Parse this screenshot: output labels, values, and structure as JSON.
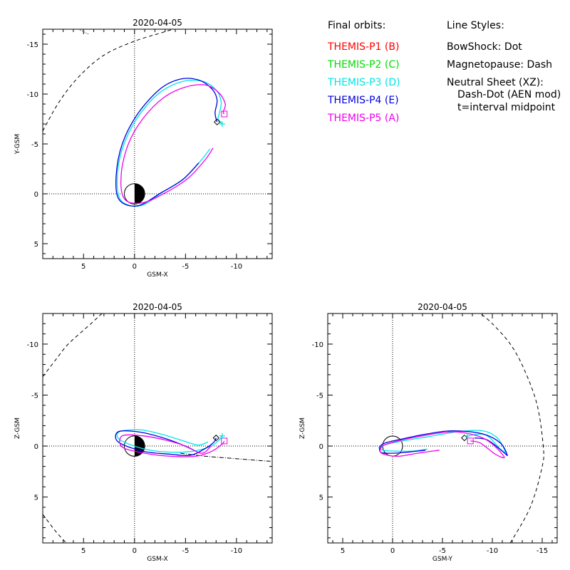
{
  "legend": {
    "title": "Final orbits:",
    "items": [
      {
        "label": "THEMIS-P1 (B)",
        "color": "#ff0000"
      },
      {
        "label": "THEMIS-P2 (C)",
        "color": "#00dd00"
      },
      {
        "label": "THEMIS-P3 (D)",
        "color": "#00e5e5"
      },
      {
        "label": "THEMIS-P4 (E)",
        "color": "#0000dd"
      },
      {
        "label": "THEMIS-P5 (A)",
        "color": "#ee00ee"
      }
    ]
  },
  "line_styles": {
    "title": "Line Styles:",
    "lines": [
      "BowShock: Dot",
      "Magnetopause: Dash",
      "Neutral Sheet (XZ):",
      "Dash-Dot (AEN mod)",
      "t=interval midpoint"
    ]
  },
  "chart_data": [
    {
      "type": "line",
      "panel": "xy",
      "title": "2020-04-05",
      "xlabel": "GSM-X",
      "ylabel": "Y-GSM",
      "xlim": [
        9,
        -13.5
      ],
      "ylim": [
        6.5,
        -16.5
      ],
      "xticks": [
        5,
        0,
        -5,
        -10
      ],
      "xtick_labels": [
        "5",
        "0",
        "-5",
        "-10"
      ],
      "yticks": [
        -15,
        -10,
        -5,
        0,
        5
      ],
      "ytick_labels": [
        "-15",
        "-10",
        "-5",
        "0",
        "5"
      ],
      "bowshock": [
        [
          6.8,
          -16.5
        ],
        [
          5.5,
          -16.5
        ],
        [
          4.5,
          -16
        ]
      ],
      "magnetopause": [
        [
          9,
          -6.3
        ],
        [
          7.4,
          -9.2
        ],
        [
          5.5,
          -11.7
        ],
        [
          3,
          -13.9
        ],
        [
          0,
          -15.3
        ],
        [
          -2.5,
          -16.1
        ],
        [
          -3.8,
          -16.5
        ]
      ],
      "series": [
        {
          "name": "THEMIS-P3 (D)",
          "color": "#00e5e5",
          "points": [
            [
              -7.4,
              -4.5
            ],
            [
              -6.4,
              -3.2
            ],
            [
              -4.8,
              -1.5
            ],
            [
              -2.8,
              -0.2
            ],
            [
              -0.6,
              1.2
            ],
            [
              1.3,
              0.7
            ],
            [
              1.7,
              -1.5
            ],
            [
              1.2,
              -4.5
            ],
            [
              -0.2,
              -7.5
            ],
            [
              -2.3,
              -10
            ],
            [
              -4.5,
              -11.2
            ],
            [
              -6.6,
              -11.3
            ],
            [
              -8,
              -10.4
            ],
            [
              -8.5,
              -9.2
            ],
            [
              -8.3,
              -8
            ],
            [
              -8.2,
              -7.5
            ],
            [
              -8.6,
              -7.0
            ]
          ]
        },
        {
          "name": "THEMIS-P4 (E)",
          "color": "#0000dd",
          "points": [
            [
              -6.3,
              -3.1
            ],
            [
              -4.7,
              -1.4
            ],
            [
              -2.6,
              -0.1
            ],
            [
              -0.3,
              1.2
            ],
            [
              1.5,
              0.6
            ],
            [
              1.8,
              -1.8
            ],
            [
              1.2,
              -5
            ],
            [
              -0.3,
              -8
            ],
            [
              -2.5,
              -10.5
            ],
            [
              -4.5,
              -11.5
            ],
            [
              -6.3,
              -11.4
            ],
            [
              -7.6,
              -10.5
            ],
            [
              -8.1,
              -9.4
            ],
            [
              -7.9,
              -8.2
            ],
            [
              -8,
              -7.5
            ],
            [
              -8.1,
              -7.2
            ]
          ]
        },
        {
          "name": "THEMIS-P5 (A)",
          "color": "#ee00ee",
          "points": [
            [
              -7.7,
              -4.6
            ],
            [
              -7,
              -3.5
            ],
            [
              -5.3,
              -1.6
            ],
            [
              -3.2,
              -0.2
            ],
            [
              -0.8,
              0.9
            ],
            [
              1,
              0.5
            ],
            [
              1.3,
              -2
            ],
            [
              0.6,
              -5
            ],
            [
              -0.8,
              -7.5
            ],
            [
              -2.8,
              -9.6
            ],
            [
              -5,
              -10.7
            ],
            [
              -7,
              -10.9
            ],
            [
              -8.3,
              -10.1
            ],
            [
              -8.9,
              -9.0
            ],
            [
              -8.7,
              -8.2
            ],
            [
              -8.8,
              -8.0
            ]
          ]
        }
      ],
      "markers": [
        {
          "type": "diamond",
          "color": "#000000",
          "x": -8.1,
          "y": -7.2
        },
        {
          "type": "square",
          "color": "#ee00ee",
          "x": -8.8,
          "y": -8.0
        },
        {
          "type": "plus",
          "color": "#00e5e5",
          "x": -8.6,
          "y": -7.0
        }
      ]
    },
    {
      "type": "line",
      "panel": "xz",
      "title": "2020-04-05",
      "xlabel": "GSM-X",
      "ylabel": "Z-GSM",
      "xlim": [
        9,
        -13.5
      ],
      "ylim": [
        9.5,
        -13
      ],
      "xticks": [
        5,
        0,
        -5,
        -10
      ],
      "xtick_labels": [
        "5",
        "0",
        "-5",
        "-10"
      ],
      "yticks": [
        5,
        0,
        -5,
        -10
      ],
      "ytick_labels": [
        "5",
        "0",
        "-5",
        "-10"
      ],
      "magnetopause_upper": [
        [
          9,
          6.7
        ],
        [
          7.7,
          8.4
        ],
        [
          6.7,
          9.5
        ]
      ],
      "magnetopause_lower": [
        [
          9,
          -6.8
        ],
        [
          7.7,
          -8.5
        ],
        [
          6.5,
          -10
        ],
        [
          4.5,
          -11.8
        ],
        [
          3.2,
          -13
        ]
      ],
      "neutral_sheet": [
        [
          -4.5,
          0.7
        ],
        [
          -7,
          1.0
        ],
        [
          -9.5,
          1.2
        ],
        [
          -12,
          1.4
        ],
        [
          -13.5,
          1.5
        ]
      ],
      "series": [
        {
          "name": "THEMIS-P3 (D)",
          "color": "#00e5e5",
          "points": [
            [
              -7.2,
              -0.4
            ],
            [
              -6.2,
              -0.1
            ],
            [
              -4.5,
              -0.6
            ],
            [
              -2.5,
              -1.2
            ],
            [
              -0.5,
              -1.6
            ],
            [
              1.5,
              -1.4
            ],
            [
              1.4,
              -0.6
            ],
            [
              -1,
              0.3
            ],
            [
              -3.5,
              0.6
            ],
            [
              -5.8,
              0.5
            ],
            [
              -7.5,
              0
            ],
            [
              -8.3,
              -0.6
            ],
            [
              -8.6,
              -1.0
            ]
          ]
        },
        {
          "name": "THEMIS-P4 (E)",
          "color": "#0000dd",
          "points": [
            [
              -6,
              0.5
            ],
            [
              -4.5,
              -0.2
            ],
            [
              -2.5,
              -0.9
            ],
            [
              -0.3,
              -1.4
            ],
            [
              1.6,
              -1.4
            ],
            [
              1.6,
              -0.4
            ],
            [
              -0.8,
              0.5
            ],
            [
              -3.5,
              0.8
            ],
            [
              -5.5,
              0.9
            ],
            [
              -7,
              0.2
            ],
            [
              -7.8,
              -0.4
            ],
            [
              -8.0,
              -0.8
            ]
          ]
        },
        {
          "name": "THEMIS-P5 (A)",
          "color": "#ee00ee",
          "points": [
            [
              -7.5,
              0.0
            ],
            [
              -6.6,
              0.7
            ],
            [
              -5,
              0.0
            ],
            [
              -3,
              -0.6
            ],
            [
              -0.8,
              -1.0
            ],
            [
              1.2,
              -1.0
            ],
            [
              1.2,
              0.1
            ],
            [
              -1,
              0.7
            ],
            [
              -3.5,
              1.0
            ],
            [
              -6,
              1.0
            ],
            [
              -7.6,
              0.5
            ],
            [
              -8.6,
              -0.2
            ],
            [
              -8.8,
              -0.5
            ]
          ]
        }
      ],
      "markers": [
        {
          "type": "diamond",
          "color": "#000000",
          "x": -8.0,
          "y": -0.8
        },
        {
          "type": "square",
          "color": "#ee00ee",
          "x": -8.8,
          "y": -0.5
        },
        {
          "type": "plus",
          "color": "#00e5e5",
          "x": -8.6,
          "y": -1.0
        }
      ]
    },
    {
      "type": "line",
      "panel": "yz",
      "title": "2020-04-05",
      "xlabel": "GSM-Y",
      "ylabel": "Z-GSM",
      "xlim": [
        6.5,
        -16.5
      ],
      "ylim": [
        9.5,
        -13
      ],
      "xticks": [
        5,
        0,
        -5,
        -10,
        -15
      ],
      "xtick_labels": [
        "5",
        "0",
        "-5",
        "-10",
        "-15"
      ],
      "yticks": [
        5,
        0,
        -5,
        -10
      ],
      "ytick_labels": [
        "5",
        "0",
        "-5",
        "-10"
      ],
      "magnetopause": [
        [
          -11.8,
          9.5
        ],
        [
          -13.8,
          6
        ],
        [
          -15,
          2
        ],
        [
          -15.1,
          0
        ],
        [
          -14.5,
          -4
        ],
        [
          -13.2,
          -7.5
        ],
        [
          -11.8,
          -10
        ],
        [
          -10,
          -12
        ],
        [
          -8.8,
          -13
        ]
      ],
      "series": [
        {
          "name": "THEMIS-P3 (D)",
          "color": "#00e5e5",
          "points": [
            [
              -3.5,
              0.3
            ],
            [
              -2,
              0.5
            ],
            [
              -0.5,
              0.5
            ],
            [
              1,
              0.4
            ],
            [
              1.2,
              0
            ],
            [
              -1,
              -0.5
            ],
            [
              -3.5,
              -0.9
            ],
            [
              -6.5,
              -1.4
            ],
            [
              -9,
              -1.5
            ],
            [
              -10.5,
              -0.8
            ],
            [
              -11.3,
              0.6
            ],
            [
              -10.8,
              0.3
            ],
            [
              -9.3,
              -1.1
            ],
            [
              -7.5,
              -1.0
            ]
          ]
        },
        {
          "name": "THEMIS-P4 (E)",
          "color": "#0000dd",
          "points": [
            [
              -3.3,
              0.4
            ],
            [
              -1.5,
              0.6
            ],
            [
              0,
              0.7
            ],
            [
              1.2,
              0.6
            ],
            [
              1.0,
              -0.2
            ],
            [
              -1,
              -0.7
            ],
            [
              -3.5,
              -1.2
            ],
            [
              -6,
              -1.5
            ],
            [
              -9,
              -1.2
            ],
            [
              -10.8,
              -0.3
            ],
            [
              -11.5,
              0.9
            ],
            [
              -11,
              0.5
            ],
            [
              -9.5,
              -0.6
            ],
            [
              -8.2,
              -0.8
            ]
          ]
        },
        {
          "name": "THEMIS-P5 (A)",
          "color": "#ee00ee",
          "points": [
            [
              -4.7,
              0.4
            ],
            [
              -2.5,
              0.7
            ],
            [
              -0.5,
              1.0
            ],
            [
              1.1,
              0.7
            ],
            [
              1.0,
              0
            ],
            [
              -0.5,
              -0.5
            ],
            [
              -3,
              -1.0
            ],
            [
              -6,
              -1.4
            ],
            [
              -8.5,
              -1.0
            ],
            [
              -10,
              -0.2
            ],
            [
              -11.2,
              1.1
            ],
            [
              -10.3,
              0.8
            ],
            [
              -8.8,
              -0.3
            ],
            [
              -7.8,
              -0.5
            ]
          ]
        }
      ],
      "markers": [
        {
          "type": "diamond",
          "color": "#000000",
          "x": -7.2,
          "y": -0.8
        },
        {
          "type": "square",
          "color": "#ee00ee",
          "x": -7.8,
          "y": -0.5
        },
        {
          "type": "plus",
          "color": "#00e5e5",
          "x": -7.5,
          "y": -1.0
        }
      ]
    }
  ]
}
